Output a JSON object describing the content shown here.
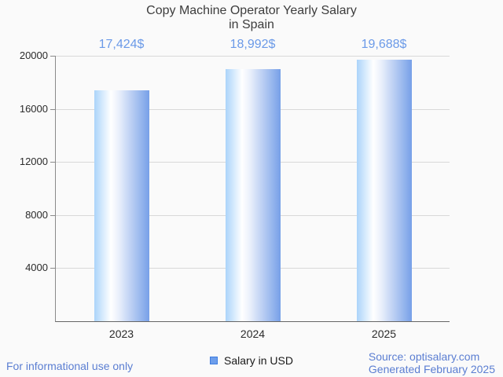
{
  "title": {
    "line1": "Copy Machine Operator Yearly Salary",
    "line2": "in Spain"
  },
  "chart_data": {
    "type": "bar",
    "title": "Copy Machine Operator Yearly Salary in Spain",
    "categories": [
      "2023",
      "2024",
      "2025"
    ],
    "series": [
      {
        "name": "Salary in USD",
        "values": [
          17424,
          18992,
          19688
        ]
      }
    ],
    "value_labels": [
      "17,424$",
      "18,992$",
      "19,688$"
    ],
    "xlabel": "",
    "ylabel": "",
    "ylim": [
      0,
      20000
    ],
    "yticks": [
      20000,
      16000,
      12000,
      8000,
      4000
    ],
    "grid": true,
    "legend_position": "bottom",
    "bar_gradient": [
      "#abd4fa",
      "#ffffff",
      "#77a0e8"
    ],
    "annotation_color": "#6b9ae8"
  },
  "legend": {
    "label": "Salary in USD",
    "swatch_fill": "#6d9eeb",
    "swatch_border": "#3f7de0"
  },
  "footer": {
    "disclaimer": "For informational use only",
    "source_line1": "Source: optisalary.com",
    "source_line2": "Generated February 2025",
    "text_color": "#5b7ed2"
  }
}
